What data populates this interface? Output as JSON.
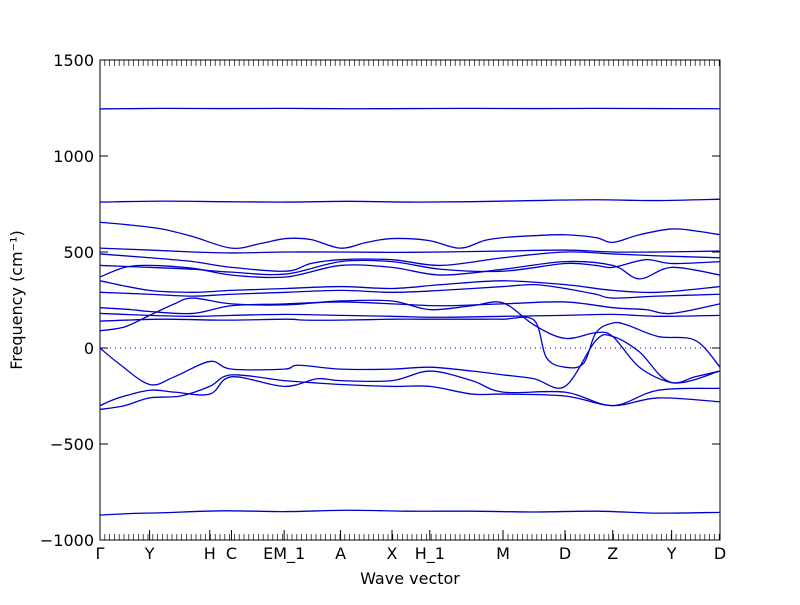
{
  "chart_data": {
    "type": "line",
    "title": "",
    "xlabel": "Wave vector",
    "ylabel": "Frequency (cm⁻¹)",
    "ylim": [
      -1000,
      1500
    ],
    "yticks": [
      -1000,
      -500,
      0,
      500,
      1000,
      1500
    ],
    "line_color": "#0000cc",
    "zero_line": {
      "y": 0,
      "style": "dotted"
    },
    "grid": false,
    "legend": "none",
    "xticks": [
      {
        "pos": 0.0,
        "label": "Γ"
      },
      {
        "pos": 0.08,
        "label": "Y"
      },
      {
        "pos": 0.177,
        "label": "H"
      },
      {
        "pos": 0.212,
        "label": "C"
      },
      {
        "pos": 0.297,
        "label": "EM_1"
      },
      {
        "pos": 0.388,
        "label": "A"
      },
      {
        "pos": 0.471,
        "label": "X"
      },
      {
        "pos": 0.532,
        "label": "H_1"
      },
      {
        "pos": 0.65,
        "label": "M"
      },
      {
        "pos": 0.75,
        "label": "D"
      },
      {
        "pos": 0.827,
        "label": "Z"
      },
      {
        "pos": 0.922,
        "label": "Y"
      },
      {
        "pos": 1.0,
        "label": "D"
      }
    ],
    "series": [
      {
        "x": [
          0,
          0.1,
          0.2,
          0.3,
          0.4,
          0.5,
          0.6,
          0.7,
          0.8,
          0.9,
          1.0
        ],
        "y": [
          1245,
          1248,
          1247,
          1248,
          1246,
          1247,
          1248,
          1247,
          1248,
          1247,
          1246
        ]
      },
      {
        "x": [
          0,
          0.1,
          0.2,
          0.3,
          0.4,
          0.5,
          0.6,
          0.7,
          0.8,
          0.9,
          1.0
        ],
        "y": [
          760,
          765,
          762,
          760,
          764,
          760,
          762,
          768,
          772,
          768,
          775
        ]
      },
      {
        "x": [
          0,
          0.05,
          0.1,
          0.15,
          0.212,
          0.26,
          0.3,
          0.34,
          0.388,
          0.43,
          0.471,
          0.53,
          0.58,
          0.62,
          0.65,
          0.7,
          0.75,
          0.8,
          0.827,
          0.87,
          0.922,
          0.96,
          1.0
        ],
        "y": [
          655,
          640,
          620,
          580,
          520,
          545,
          570,
          565,
          520,
          550,
          570,
          560,
          520,
          560,
          575,
          585,
          590,
          575,
          550,
          590,
          620,
          610,
          590
        ]
      },
      {
        "x": [
          0,
          0.08,
          0.15,
          0.212,
          0.3,
          0.388,
          0.471,
          0.55,
          0.65,
          0.75,
          0.827,
          0.9,
          1.0
        ],
        "y": [
          520,
          510,
          500,
          495,
          500,
          500,
          498,
          500,
          505,
          510,
          500,
          500,
          505
        ]
      },
      {
        "x": [
          0,
          0.08,
          0.15,
          0.212,
          0.3,
          0.34,
          0.388,
          0.471,
          0.55,
          0.65,
          0.75,
          0.827,
          0.9,
          1.0
        ],
        "y": [
          490,
          470,
          450,
          420,
          400,
          440,
          460,
          460,
          430,
          470,
          500,
          490,
          480,
          470
        ]
      },
      {
        "x": [
          0,
          0.08,
          0.15,
          0.212,
          0.3,
          0.388,
          0.471,
          0.55,
          0.65,
          0.75,
          0.8,
          0.827,
          0.88,
          0.922,
          1.0
        ],
        "y": [
          430,
          420,
          410,
          395,
          385,
          450,
          450,
          410,
          400,
          440,
          430,
          420,
          460,
          440,
          450
        ]
      },
      {
        "x": [
          0,
          0.04,
          0.08,
          0.15,
          0.212,
          0.3,
          0.388,
          0.471,
          0.55,
          0.65,
          0.75,
          0.827,
          0.87,
          0.922,
          1.0
        ],
        "y": [
          370,
          420,
          430,
          415,
          380,
          370,
          430,
          420,
          380,
          410,
          450,
          430,
          360,
          420,
          380
        ]
      },
      {
        "x": [
          0,
          0.08,
          0.15,
          0.212,
          0.3,
          0.388,
          0.471,
          0.55,
          0.65,
          0.75,
          0.827,
          0.9,
          1.0
        ],
        "y": [
          350,
          300,
          290,
          300,
          310,
          320,
          310,
          330,
          350,
          330,
          300,
          290,
          320
        ]
      },
      {
        "x": [
          0,
          0.08,
          0.15,
          0.212,
          0.3,
          0.388,
          0.471,
          0.55,
          0.65,
          0.7,
          0.75,
          0.8,
          0.827,
          0.9,
          1.0
        ],
        "y": [
          290,
          280,
          270,
          280,
          290,
          300,
          290,
          300,
          320,
          330,
          310,
          280,
          260,
          270,
          280
        ]
      },
      {
        "x": [
          0,
          0.05,
          0.08,
          0.15,
          0.212,
          0.3,
          0.388,
          0.471,
          0.55,
          0.65,
          0.75,
          0.827,
          0.88,
          0.922,
          1.0
        ],
        "y": [
          210,
          200,
          190,
          180,
          220,
          230,
          240,
          230,
          220,
          230,
          240,
          210,
          200,
          180,
          230
        ]
      },
      {
        "x": [
          0,
          0.08,
          0.15,
          0.212,
          0.3,
          0.388,
          0.471,
          0.55,
          0.65,
          0.75,
          0.827,
          0.9,
          1.0
        ],
        "y": [
          180,
          170,
          165,
          170,
          175,
          170,
          165,
          160,
          165,
          170,
          175,
          165,
          170
        ]
      },
      {
        "x": [
          0,
          0.04,
          0.08,
          0.12,
          0.15,
          0.212,
          0.3,
          0.388,
          0.471,
          0.532,
          0.6,
          0.65,
          0.7,
          0.75,
          0.8,
          0.827,
          0.87,
          0.922,
          0.96,
          1.0
        ],
        "y": [
          90,
          110,
          170,
          230,
          260,
          230,
          225,
          245,
          245,
          200,
          220,
          235,
          120,
          50,
          80,
          60,
          -100,
          -180,
          -150,
          -120
        ]
      },
      {
        "x": [
          0,
          0.1,
          0.2,
          0.3,
          0.33,
          0.388,
          0.471,
          0.532,
          0.54,
          0.6,
          0.65,
          0.7,
          0.72,
          0.75,
          0.78,
          0.8,
          0.827,
          0.85,
          0.9,
          0.96,
          1.0
        ],
        "y": [
          140,
          150,
          145,
          150,
          145,
          145,
          150,
          150,
          150,
          150,
          150,
          145,
          -50,
          -100,
          -80,
          80,
          130,
          120,
          60,
          40,
          -100
        ]
      },
      {
        "x": [
          0,
          0.03,
          0.08,
          0.12,
          0.177,
          0.212,
          0.297,
          0.32,
          0.388,
          0.471,
          0.532,
          0.6,
          0.65,
          0.7,
          0.75,
          0.8,
          0.827,
          0.87,
          0.922,
          1.0
        ],
        "y": [
          0,
          -80,
          -190,
          -150,
          -70,
          -110,
          -110,
          -90,
          -110,
          -110,
          -100,
          -120,
          -140,
          -160,
          -200,
          40,
          60,
          -20,
          -180,
          -120
        ]
      },
      {
        "x": [
          0,
          0.03,
          0.08,
          0.12,
          0.177,
          0.212,
          0.297,
          0.35,
          0.388,
          0.471,
          0.532,
          0.6,
          0.65,
          0.75,
          0.827,
          0.9,
          1.0
        ],
        "y": [
          -300,
          -260,
          -220,
          -230,
          -240,
          -150,
          -200,
          -160,
          -170,
          -170,
          -120,
          -170,
          -230,
          -230,
          -300,
          -220,
          -210
        ]
      },
      {
        "x": [
          0,
          0.04,
          0.08,
          0.13,
          0.177,
          0.212,
          0.297,
          0.34,
          0.388,
          0.471,
          0.532,
          0.6,
          0.65,
          0.75,
          0.827,
          0.9,
          1.0
        ],
        "y": [
          -320,
          -300,
          -260,
          -250,
          -200,
          -140,
          -170,
          -180,
          -190,
          -200,
          -200,
          -240,
          -240,
          -250,
          -300,
          -260,
          -280
        ]
      },
      {
        "x": [
          0,
          0.05,
          0.1,
          0.2,
          0.3,
          0.4,
          0.5,
          0.6,
          0.7,
          0.8,
          0.9,
          1.0
        ],
        "y": [
          -870,
          -862,
          -858,
          -848,
          -852,
          -845,
          -850,
          -850,
          -854,
          -850,
          -860,
          -856
        ]
      }
    ]
  }
}
